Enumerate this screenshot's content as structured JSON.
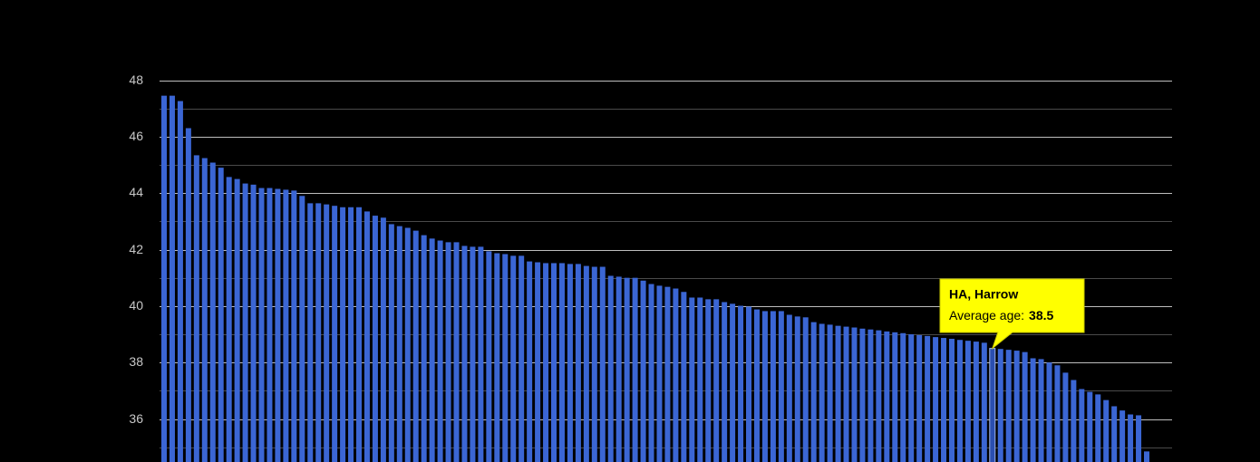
{
  "chart_data": {
    "type": "bar",
    "values": [
      47.45,
      47.45,
      47.26,
      46.3,
      45.34,
      45.24,
      45.08,
      44.9,
      44.57,
      44.5,
      44.34,
      44.3,
      44.18,
      44.18,
      44.15,
      44.12,
      44.09,
      43.9,
      43.64,
      43.64,
      43.6,
      43.55,
      43.5,
      43.5,
      43.5,
      43.35,
      43.2,
      43.13,
      42.9,
      42.83,
      42.77,
      42.67,
      42.51,
      42.39,
      42.32,
      42.26,
      42.26,
      42.13,
      42.1,
      42.1,
      41.94,
      41.87,
      41.84,
      41.78,
      41.78,
      41.58,
      41.55,
      41.52,
      41.52,
      41.52,
      41.49,
      41.49,
      41.42,
      41.39,
      41.39,
      41.07,
      41.04,
      41.0,
      41.0,
      40.9,
      40.78,
      40.72,
      40.68,
      40.62,
      40.5,
      40.3,
      40.3,
      40.24,
      40.24,
      40.14,
      40.08,
      40.01,
      39.98,
      39.88,
      39.82,
      39.82,
      39.82,
      39.69,
      39.63,
      39.6,
      39.43,
      39.37,
      39.34,
      39.3,
      39.27,
      39.24,
      39.2,
      39.17,
      39.14,
      39.1,
      39.07,
      39.04,
      39.0,
      38.97,
      38.94,
      38.9,
      38.87,
      38.84,
      38.8,
      38.77,
      38.74,
      38.7,
      38.5,
      38.48,
      38.45,
      38.42,
      38.37,
      38.15,
      38.12,
      38.0,
      37.9,
      37.64,
      37.38,
      37.06,
      36.96,
      36.87,
      36.67,
      36.45,
      36.3,
      36.16,
      36.13,
      34.85
    ],
    "color": "#3b66d4",
    "ylim": [
      34.46,
      48
    ],
    "yticks": [
      36,
      38,
      40,
      42,
      44,
      46,
      48
    ],
    "yminorticks": [
      35,
      37,
      39,
      41,
      43,
      45,
      47
    ],
    "grid": true,
    "tooltip": {
      "index": 102,
      "title": "HA, Harrow",
      "label": "Average age:"
    }
  }
}
